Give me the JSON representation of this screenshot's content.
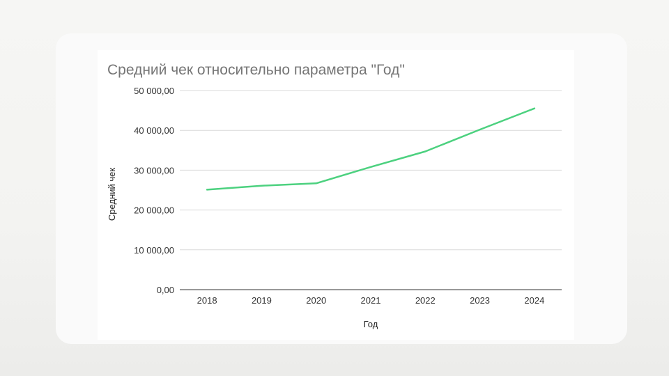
{
  "chart_data": {
    "type": "line",
    "title": "Средний чек относительно параметра \"Год\"",
    "xlabel": "Год",
    "ylabel": "Средний чек",
    "categories": [
      "2018",
      "2019",
      "2020",
      "2021",
      "2022",
      "2023",
      "2024"
    ],
    "series": [
      {
        "values": [
          25100,
          26100,
          26700,
          30800,
          34700,
          40200,
          45500
        ],
        "color": "#4cd17f"
      }
    ],
    "ylim": [
      0,
      50000
    ],
    "yticks": [
      0,
      10000,
      20000,
      30000,
      40000,
      50000
    ],
    "ytick_labels": [
      "0,00",
      "10 000,00",
      "20 000,00",
      "30 000,00",
      "40 000,00",
      "50 000,00"
    ],
    "grid": true,
    "legend": "none"
  }
}
